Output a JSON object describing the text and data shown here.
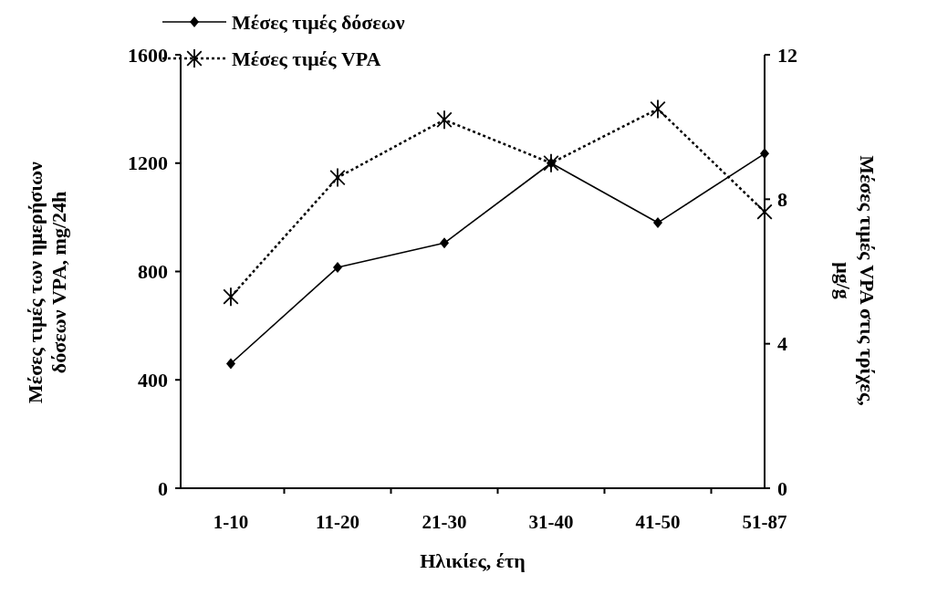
{
  "chart_data": {
    "type": "line",
    "xlabel": "Ηλικίες, έτη",
    "ylabel": "Μέσες τιμές των ημερήσιων\nδόσεων VPA, mg/24h",
    "y2label": "Μέσες τιμές VPA στις τρίχες,\nμg/g",
    "categories": [
      "1-10",
      "11-20",
      "21-30",
      "31-40",
      "41-50",
      "51-87"
    ],
    "series": [
      {
        "name": "Μέσες τιμές δόσεων",
        "color": "#000000",
        "marker": "diamond",
        "line_style": "solid",
        "values": [
          460,
          815,
          905,
          1200,
          980,
          1235
        ]
      },
      {
        "name": "Μέσες τιμές VPA",
        "color": "#000000",
        "marker": "cross",
        "line_style": "dotted",
        "axis": "y2",
        "values": [
          5.3,
          8.6,
          10.2,
          9.0,
          10.5,
          7.65
        ]
      }
    ],
    "ylim": [
      0,
      1600
    ],
    "yticks": [
      0,
      400,
      800,
      1200,
      1600
    ],
    "y2lim": [
      0,
      12
    ],
    "y2ticks": [
      0,
      4,
      8,
      12
    ],
    "legend": "top left",
    "grid": false
  }
}
